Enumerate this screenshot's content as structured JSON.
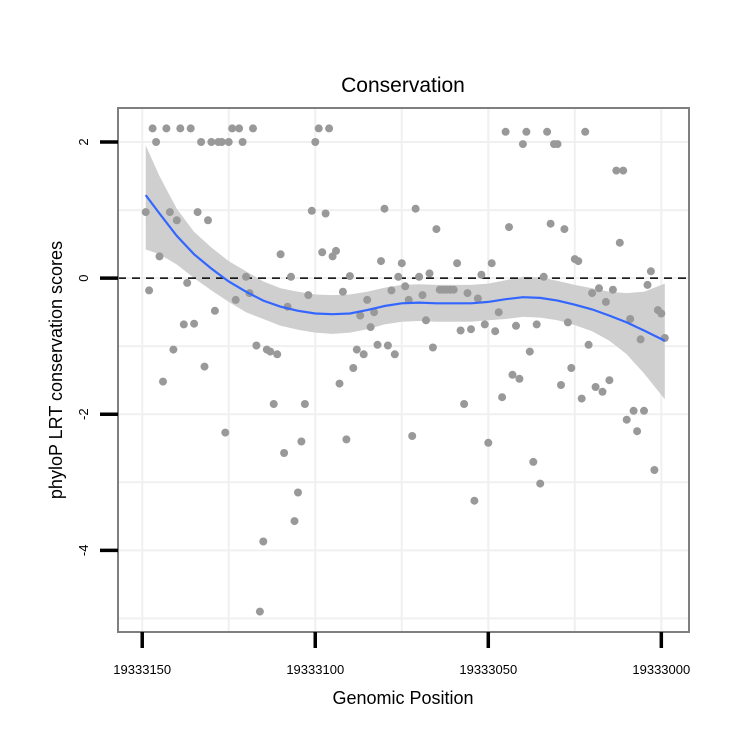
{
  "chart_data": {
    "type": "scatter",
    "title": "Conservation",
    "xlabel": "Genomic Position",
    "ylabel": "phyloP LRT conservation scores",
    "x_reversed": true,
    "xlim": [
      19333157,
      19332992
    ],
    "ylim": [
      -5.2,
      2.5
    ],
    "x_ticks": [
      19333150,
      19333100,
      19333050,
      19333000
    ],
    "x_tick_labels": [
      "19333150",
      "19333100",
      "19333050",
      "19333000"
    ],
    "y_ticks": [
      2,
      0,
      -2,
      -4
    ],
    "y_tick_labels": [
      "2",
      "0",
      "-2",
      "-4"
    ],
    "reference_line": {
      "y": 0,
      "style": "dashed",
      "color": "#000000"
    },
    "grid": true,
    "legend": "none",
    "colors": {
      "points": "#999999",
      "smooth_line": "#3366FF",
      "confidence_band": "#cfcfcf",
      "panel_border": "#7f7f7f",
      "grid": "#f0f0f0"
    },
    "points": [
      {
        "x": 19333149,
        "y": 0.97
      },
      {
        "x": 19333148,
        "y": -0.18
      },
      {
        "x": 19333147,
        "y": 2.2
      },
      {
        "x": 19333146,
        "y": 2.0
      },
      {
        "x": 19333145,
        "y": 0.32
      },
      {
        "x": 19333144,
        "y": -1.52
      },
      {
        "x": 19333143,
        "y": 2.2
      },
      {
        "x": 19333142,
        "y": 0.97
      },
      {
        "x": 19333141,
        "y": -1.05
      },
      {
        "x": 19333140,
        "y": 0.85
      },
      {
        "x": 19333139,
        "y": 2.2
      },
      {
        "x": 19333138,
        "y": -0.68
      },
      {
        "x": 19333137,
        "y": -0.07
      },
      {
        "x": 19333136,
        "y": 2.2
      },
      {
        "x": 19333135,
        "y": -0.67
      },
      {
        "x": 19333134,
        "y": 0.97
      },
      {
        "x": 19333133,
        "y": 2.0
      },
      {
        "x": 19333132,
        "y": -1.3
      },
      {
        "x": 19333131,
        "y": 0.85
      },
      {
        "x": 19333130,
        "y": 2.0
      },
      {
        "x": 19333129,
        "y": -0.48
      },
      {
        "x": 19333128,
        "y": 2.0
      },
      {
        "x": 19333127,
        "y": 2.0
      },
      {
        "x": 19333126,
        "y": -2.27
      },
      {
        "x": 19333125,
        "y": 2.0
      },
      {
        "x": 19333124,
        "y": 2.2
      },
      {
        "x": 19333123,
        "y": -0.32
      },
      {
        "x": 19333122,
        "y": 2.2
      },
      {
        "x": 19333121,
        "y": 2.0
      },
      {
        "x": 19333120,
        "y": 0.02
      },
      {
        "x": 19333119,
        "y": -0.22
      },
      {
        "x": 19333118,
        "y": 2.2
      },
      {
        "x": 19333117,
        "y": -0.99
      },
      {
        "x": 19333116,
        "y": -4.9
      },
      {
        "x": 19333115,
        "y": -3.87
      },
      {
        "x": 19333114,
        "y": -1.05
      },
      {
        "x": 19333113,
        "y": -1.08
      },
      {
        "x": 19333112,
        "y": -1.85
      },
      {
        "x": 19333111,
        "y": -1.12
      },
      {
        "x": 19333110,
        "y": 0.35
      },
      {
        "x": 19333109,
        "y": -2.57
      },
      {
        "x": 19333108,
        "y": -0.42
      },
      {
        "x": 19333107,
        "y": 0.02
      },
      {
        "x": 19333106,
        "y": -3.57
      },
      {
        "x": 19333105,
        "y": -3.15
      },
      {
        "x": 19333104,
        "y": -2.4
      },
      {
        "x": 19333103,
        "y": -1.85
      },
      {
        "x": 19333102,
        "y": -0.25
      },
      {
        "x": 19333101,
        "y": 0.99
      },
      {
        "x": 19333100,
        "y": 2.0
      },
      {
        "x": 19333099,
        "y": 2.2
      },
      {
        "x": 19333098,
        "y": 0.38
      },
      {
        "x": 19333097,
        "y": 0.95
      },
      {
        "x": 19333096,
        "y": 2.2
      },
      {
        "x": 19333095,
        "y": 0.32
      },
      {
        "x": 19333094,
        "y": 0.4
      },
      {
        "x": 19333093,
        "y": -1.55
      },
      {
        "x": 19333092,
        "y": -0.2
      },
      {
        "x": 19333091,
        "y": -2.37
      },
      {
        "x": 19333090,
        "y": 0.03
      },
      {
        "x": 19333089,
        "y": -1.32
      },
      {
        "x": 19333088,
        "y": -1.05
      },
      {
        "x": 19333087,
        "y": -0.55
      },
      {
        "x": 19333086,
        "y": -1.12
      },
      {
        "x": 19333085,
        "y": -0.32
      },
      {
        "x": 19333084,
        "y": -0.72
      },
      {
        "x": 19333083,
        "y": -0.5
      },
      {
        "x": 19333082,
        "y": -0.98
      },
      {
        "x": 19333081,
        "y": 0.25
      },
      {
        "x": 19333080,
        "y": 1.02
      },
      {
        "x": 19333079,
        "y": -0.99
      },
      {
        "x": 19333078,
        "y": -0.18
      },
      {
        "x": 19333077,
        "y": -1.12
      },
      {
        "x": 19333076,
        "y": 0.02
      },
      {
        "x": 19333075,
        "y": 0.22
      },
      {
        "x": 19333074,
        "y": -0.12
      },
      {
        "x": 19333073,
        "y": -0.32
      },
      {
        "x": 19333072,
        "y": -2.32
      },
      {
        "x": 19333071,
        "y": 1.02
      },
      {
        "x": 19333070,
        "y": 0.02
      },
      {
        "x": 19333069,
        "y": -0.25
      },
      {
        "x": 19333068,
        "y": -0.62
      },
      {
        "x": 19333067,
        "y": 0.07
      },
      {
        "x": 19333066,
        "y": -1.02
      },
      {
        "x": 19333065,
        "y": 0.72
      },
      {
        "x": 19333064,
        "y": -0.17
      },
      {
        "x": 19333063,
        "y": -0.17
      },
      {
        "x": 19333062,
        "y": -0.17
      },
      {
        "x": 19333061,
        "y": -0.17
      },
      {
        "x": 19333060,
        "y": -0.17
      },
      {
        "x": 19333059,
        "y": 0.22
      },
      {
        "x": 19333058,
        "y": -0.77
      },
      {
        "x": 19333057,
        "y": -1.85
      },
      {
        "x": 19333056,
        "y": -0.22
      },
      {
        "x": 19333055,
        "y": -0.75
      },
      {
        "x": 19333054,
        "y": -3.27
      },
      {
        "x": 19333053,
        "y": -0.3
      },
      {
        "x": 19333052,
        "y": 0.05
      },
      {
        "x": 19333051,
        "y": -0.68
      },
      {
        "x": 19333050,
        "y": -2.42
      },
      {
        "x": 19333049,
        "y": 0.22
      },
      {
        "x": 19333048,
        "y": -0.78
      },
      {
        "x": 19333047,
        "y": -0.5
      },
      {
        "x": 19333046,
        "y": -1.75
      },
      {
        "x": 19333045,
        "y": 2.15
      },
      {
        "x": 19333044,
        "y": 0.75
      },
      {
        "x": 19333043,
        "y": -1.42
      },
      {
        "x": 19333042,
        "y": -0.7
      },
      {
        "x": 19333041,
        "y": -1.48
      },
      {
        "x": 19333040,
        "y": 1.97
      },
      {
        "x": 19333039,
        "y": 2.15
      },
      {
        "x": 19333038,
        "y": -1.08
      },
      {
        "x": 19333037,
        "y": -2.7
      },
      {
        "x": 19333036,
        "y": -0.68
      },
      {
        "x": 19333035,
        "y": -3.02
      },
      {
        "x": 19333034,
        "y": 0.02
      },
      {
        "x": 19333033,
        "y": 2.15
      },
      {
        "x": 19333032,
        "y": 0.8
      },
      {
        "x": 19333031,
        "y": 1.97
      },
      {
        "x": 19333030,
        "y": 1.97
      },
      {
        "x": 19333029,
        "y": -1.57
      },
      {
        "x": 19333028,
        "y": 0.72
      },
      {
        "x": 19333027,
        "y": -0.65
      },
      {
        "x": 19333026,
        "y": -1.32
      },
      {
        "x": 19333025,
        "y": 0.28
      },
      {
        "x": 19333024,
        "y": 0.25
      },
      {
        "x": 19333023,
        "y": -1.77
      },
      {
        "x": 19333022,
        "y": 2.15
      },
      {
        "x": 19333021,
        "y": -0.98
      },
      {
        "x": 19333020,
        "y": -0.22
      },
      {
        "x": 19333019,
        "y": -1.6
      },
      {
        "x": 19333018,
        "y": -0.15
      },
      {
        "x": 19333017,
        "y": -1.67
      },
      {
        "x": 19333016,
        "y": -0.35
      },
      {
        "x": 19333015,
        "y": -1.5
      },
      {
        "x": 19333014,
        "y": -0.17
      },
      {
        "x": 19333013,
        "y": 1.58
      },
      {
        "x": 19333012,
        "y": 0.52
      },
      {
        "x": 19333011,
        "y": 1.58
      },
      {
        "x": 19333010,
        "y": -2.08
      },
      {
        "x": 19333009,
        "y": -0.6
      },
      {
        "x": 19333008,
        "y": -1.95
      },
      {
        "x": 19333007,
        "y": -2.25
      },
      {
        "x": 19333006,
        "y": -0.9
      },
      {
        "x": 19333005,
        "y": -1.95
      },
      {
        "x": 19333004,
        "y": -0.1
      },
      {
        "x": 19333003,
        "y": 0.1
      },
      {
        "x": 19333002,
        "y": -2.82
      },
      {
        "x": 19333001,
        "y": -0.47
      },
      {
        "x": 19333000,
        "y": -0.52
      },
      {
        "x": 19332999,
        "y": -0.88
      }
    ],
    "smooth": [
      {
        "x": 19333149,
        "y": 1.22,
        "lower": 0.42,
        "upper": 1.95
      },
      {
        "x": 19333145,
        "y": 0.95,
        "lower": 0.35,
        "upper": 1.5
      },
      {
        "x": 19333140,
        "y": 0.62,
        "lower": 0.2,
        "upper": 1.02
      },
      {
        "x": 19333135,
        "y": 0.35,
        "lower": 0.0,
        "upper": 0.68
      },
      {
        "x": 19333130,
        "y": 0.14,
        "lower": -0.18,
        "upper": 0.45
      },
      {
        "x": 19333125,
        "y": -0.05,
        "lower": -0.35,
        "upper": 0.25
      },
      {
        "x": 19333120,
        "y": -0.2,
        "lower": -0.5,
        "upper": 0.1
      },
      {
        "x": 19333115,
        "y": -0.33,
        "lower": -0.6,
        "upper": -0.05
      },
      {
        "x": 19333110,
        "y": -0.42,
        "lower": -0.7,
        "upper": -0.15
      },
      {
        "x": 19333105,
        "y": -0.48,
        "lower": -0.76,
        "upper": -0.2
      },
      {
        "x": 19333100,
        "y": -0.52,
        "lower": -0.8,
        "upper": -0.24
      },
      {
        "x": 19333095,
        "y": -0.53,
        "lower": -0.82,
        "upper": -0.25
      },
      {
        "x": 19333090,
        "y": -0.52,
        "lower": -0.8,
        "upper": -0.24
      },
      {
        "x": 19333085,
        "y": -0.47,
        "lower": -0.75,
        "upper": -0.2
      },
      {
        "x": 19333080,
        "y": -0.41,
        "lower": -0.68,
        "upper": -0.14
      },
      {
        "x": 19333075,
        "y": -0.37,
        "lower": -0.64,
        "upper": -0.1
      },
      {
        "x": 19333070,
        "y": -0.36,
        "lower": -0.63,
        "upper": -0.09
      },
      {
        "x": 19333065,
        "y": -0.37,
        "lower": -0.64,
        "upper": -0.1
      },
      {
        "x": 19333060,
        "y": -0.37,
        "lower": -0.64,
        "upper": -0.1
      },
      {
        "x": 19333055,
        "y": -0.37,
        "lower": -0.64,
        "upper": -0.1
      },
      {
        "x": 19333050,
        "y": -0.35,
        "lower": -0.62,
        "upper": -0.08
      },
      {
        "x": 19333045,
        "y": -0.31,
        "lower": -0.6,
        "upper": -0.03
      },
      {
        "x": 19333040,
        "y": -0.28,
        "lower": -0.57,
        "upper": 0.02
      },
      {
        "x": 19333035,
        "y": -0.29,
        "lower": -0.58,
        "upper": 0.01
      },
      {
        "x": 19333030,
        "y": -0.33,
        "lower": -0.62,
        "upper": -0.04
      },
      {
        "x": 19333025,
        "y": -0.39,
        "lower": -0.69,
        "upper": -0.1
      },
      {
        "x": 19333020,
        "y": -0.46,
        "lower": -0.78,
        "upper": -0.15
      },
      {
        "x": 19333015,
        "y": -0.55,
        "lower": -0.92,
        "upper": -0.2
      },
      {
        "x": 19333010,
        "y": -0.65,
        "lower": -1.12,
        "upper": -0.22
      },
      {
        "x": 19333005,
        "y": -0.77,
        "lower": -1.4,
        "upper": -0.2
      },
      {
        "x": 19332999,
        "y": -0.92,
        "lower": -1.78,
        "upper": -0.08
      }
    ]
  }
}
